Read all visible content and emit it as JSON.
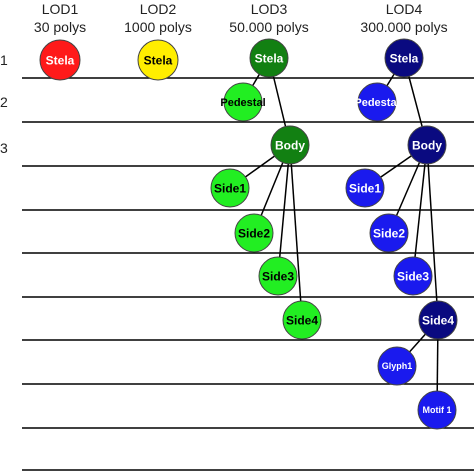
{
  "headers": [
    {
      "title": "LOD1",
      "sub": "30 polys"
    },
    {
      "title": "LOD2",
      "sub": "1000 polys"
    },
    {
      "title": "LOD3",
      "sub": "50.000 polys"
    },
    {
      "title": "LOD4",
      "sub": "300.000 polys"
    }
  ],
  "row_labels": [
    "1",
    "2",
    "3"
  ],
  "colors": {
    "red": "#ff1a1a",
    "yellow": "#ffee00",
    "dark_green": "#128012",
    "light_green": "#22ee22",
    "dark_blue": "#0a0a80",
    "blue": "#1a1aee",
    "outline": "#444444",
    "line": "#000000"
  },
  "nodes": [
    {
      "id": "lod1-stela",
      "label": "Stela",
      "color": "red",
      "text": "white"
    },
    {
      "id": "lod2-stela",
      "label": "Stela",
      "color": "yellow",
      "text": "black"
    },
    {
      "id": "lod3-stela",
      "label": "Stela",
      "color": "dark_green",
      "text": "white"
    },
    {
      "id": "lod3-pedestal",
      "label": "Pedestal",
      "color": "light_green",
      "text": "black"
    },
    {
      "id": "lod3-body",
      "label": "Body",
      "color": "dark_green",
      "text": "white"
    },
    {
      "id": "lod3-side1",
      "label": "Side1",
      "color": "light_green",
      "text": "black"
    },
    {
      "id": "lod3-side2",
      "label": "Side2",
      "color": "light_green",
      "text": "black"
    },
    {
      "id": "lod3-side3",
      "label": "Side3",
      "color": "light_green",
      "text": "black"
    },
    {
      "id": "lod3-side4",
      "label": "Side4",
      "color": "light_green",
      "text": "black"
    },
    {
      "id": "lod4-stela",
      "label": "Stela",
      "color": "dark_blue",
      "text": "white"
    },
    {
      "id": "lod4-pedestal",
      "label": "Pedestal",
      "color": "blue",
      "text": "white"
    },
    {
      "id": "lod4-body",
      "label": "Body",
      "color": "dark_blue",
      "text": "white"
    },
    {
      "id": "lod4-side1",
      "label": "Side1",
      "color": "blue",
      "text": "white"
    },
    {
      "id": "lod4-side2",
      "label": "Side2",
      "color": "blue",
      "text": "white"
    },
    {
      "id": "lod4-side3",
      "label": "Side3",
      "color": "blue",
      "text": "white"
    },
    {
      "id": "lod4-side4",
      "label": "Side4",
      "color": "dark_blue",
      "text": "white"
    },
    {
      "id": "lod4-glyph1",
      "label": "Glyph1",
      "color": "blue",
      "text": "white"
    },
    {
      "id": "lod4-motif1",
      "label": "Motif 1",
      "color": "blue",
      "text": "white"
    }
  ],
  "edges": [
    [
      "lod3-stela",
      "lod3-pedestal"
    ],
    [
      "lod3-stela",
      "lod3-body"
    ],
    [
      "lod3-body",
      "lod3-side1"
    ],
    [
      "lod3-body",
      "lod3-side2"
    ],
    [
      "lod3-body",
      "lod3-side3"
    ],
    [
      "lod3-body",
      "lod3-side4"
    ],
    [
      "lod4-stela",
      "lod4-pedestal"
    ],
    [
      "lod4-stela",
      "lod4-body"
    ],
    [
      "lod4-body",
      "lod4-side1"
    ],
    [
      "lod4-body",
      "lod4-side2"
    ],
    [
      "lod4-body",
      "lod4-side3"
    ],
    [
      "lod4-body",
      "lod4-side4"
    ],
    [
      "lod4-side4",
      "lod4-glyph1"
    ],
    [
      "lod4-side4",
      "lod4-motif1"
    ]
  ]
}
